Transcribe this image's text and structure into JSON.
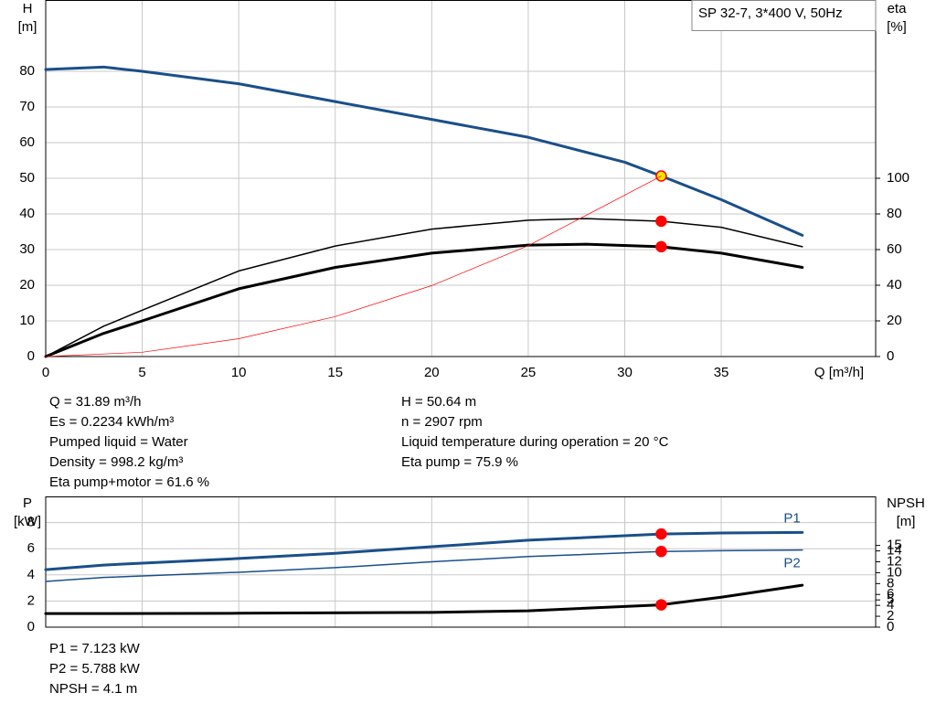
{
  "chart_data": [
    {
      "type": "line",
      "box_label": "SP 32-7, 3*400 V, 50Hz",
      "xlabel": "Q [m³/h]",
      "ylabel": [
        "H",
        "[m]"
      ],
      "y2label": [
        "eta",
        "[%]"
      ],
      "xlim": [
        0,
        43
      ],
      "xticks": [
        0,
        5,
        10,
        15,
        20,
        25,
        30,
        35
      ],
      "ylim": [
        0,
        100
      ],
      "yticks": [
        0,
        10,
        20,
        30,
        40,
        50,
        60,
        70,
        80
      ],
      "y2lim": [
        0,
        200
      ],
      "y2ticks": [
        0,
        20,
        40,
        60,
        80,
        100
      ],
      "grid": true,
      "series": [
        {
          "color": "#1a4f8a",
          "line_width": 3,
          "x": [
            0,
            3,
            5,
            10,
            15,
            20,
            25,
            30,
            31.89,
            35,
            39.2
          ],
          "values": [
            80.5,
            81.2,
            80,
            76.5,
            71.5,
            66.5,
            61.5,
            54.5,
            50.64,
            44,
            34
          ],
          "point": [
            31.89,
            50.64
          ],
          "point_color": "#ffe600"
        },
        {
          "color": "#000000",
          "line_width": 1.5,
          "axis": "y2",
          "x": [
            0,
            3,
            5,
            10,
            15,
            20,
            25,
            28,
            31.89,
            35,
            39.2
          ],
          "values": [
            0,
            17,
            26,
            48,
            62,
            71.5,
            76.5,
            77.4,
            75.9,
            72.5,
            61.6
          ],
          "point": [
            31.89,
            75.9
          ],
          "point_color": "#ff0000"
        },
        {
          "color": "#000000",
          "line_width": 3,
          "axis": "y2",
          "x": [
            0,
            3,
            5,
            10,
            15,
            20,
            25,
            28,
            31.89,
            35,
            39.2
          ],
          "values": [
            0,
            13,
            20,
            38,
            50,
            58,
            62.5,
            63,
            61.6,
            58,
            50
          ],
          "point": [
            31.89,
            61.6
          ],
          "point_color": "#ff0000"
        },
        {
          "color": "#ff0000",
          "line_width": 0.7,
          "x": [
            0,
            5,
            10,
            15,
            20,
            25,
            31.89
          ],
          "values": [
            0,
            1.2,
            5,
            11.2,
            19.9,
            31.1,
            50.64
          ]
        }
      ],
      "annotations": [
        [
          "Q = 31.89 m³/h",
          "Es = 0.2234 kWh/m³",
          "Pumped liquid = Water",
          "Density = 998.2 kg/m³",
          "Eta pump+motor = 61.6 %"
        ],
        [
          "H = 50.64 m",
          "n = 2907 rpm",
          "Liquid temperature during operation = 20 °C",
          "Eta pump = 75.9 %"
        ]
      ]
    },
    {
      "type": "line",
      "ylabel": [
        "P",
        "[kW]"
      ],
      "y2label": [
        "NPSH",
        "[m]"
      ],
      "xlim": [
        0,
        43
      ],
      "ylim": [
        0,
        10
      ],
      "yticks": [
        0,
        2,
        4,
        6,
        8
      ],
      "y2lim": [
        0,
        24
      ],
      "y2ticks": [
        0,
        2,
        4,
        5,
        6,
        8,
        10,
        12,
        14,
        15
      ],
      "grid": true,
      "series": [
        {
          "name": "P1",
          "color": "#1a4f8a",
          "line_width": 3,
          "x": [
            0,
            3,
            10,
            15,
            20,
            25,
            31.89,
            35,
            39.2
          ],
          "values": [
            4.4,
            4.75,
            5.25,
            5.65,
            6.15,
            6.65,
            7.123,
            7.2,
            7.25
          ],
          "point": [
            31.89,
            7.123
          ],
          "point_color": "#ff0000"
        },
        {
          "name": "P2",
          "color": "#1a4f8a",
          "line_width": 1.5,
          "x": [
            0,
            3,
            10,
            15,
            20,
            25,
            31.89,
            35,
            39.2
          ],
          "values": [
            3.5,
            3.8,
            4.2,
            4.55,
            5.0,
            5.4,
            5.788,
            5.85,
            5.9
          ],
          "point": [
            31.89,
            5.788
          ],
          "point_color": "#ff0000"
        },
        {
          "color": "#000000",
          "line_width": 3,
          "axis": "y2",
          "x": [
            0,
            3,
            10,
            20,
            25,
            31.89,
            35,
            39.2
          ],
          "values": [
            2.5,
            2.5,
            2.55,
            2.7,
            3.0,
            4.1,
            5.5,
            7.7
          ],
          "point": [
            31.89,
            4.1
          ],
          "point_color": "#ff0000"
        }
      ],
      "annotations": [
        [
          "P1 = 7.123 kW",
          "P2 = 5.788 kW",
          "NPSH = 4.1 m"
        ]
      ]
    }
  ]
}
